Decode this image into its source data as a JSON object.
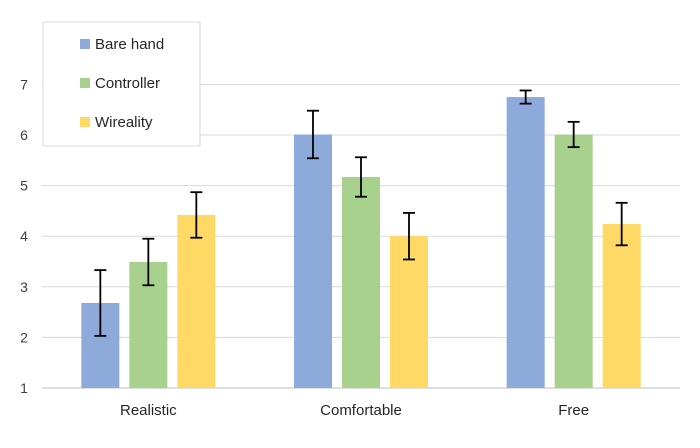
{
  "chart_data": {
    "type": "bar",
    "title": "",
    "xlabel": "",
    "ylabel": "",
    "ylim": [
      1,
      7
    ],
    "ytick_step": 1,
    "grid": true,
    "legend_position": "top-left",
    "categories": [
      "Realistic",
      "Comfortable",
      "Free"
    ],
    "series": [
      {
        "name": "Bare hand",
        "color": "#8eaadb",
        "values": [
          2.68,
          6.01,
          6.75
        ],
        "errors": [
          0.65,
          0.47,
          0.13
        ]
      },
      {
        "name": "Controller",
        "color": "#a9d18e",
        "values": [
          3.49,
          5.17,
          6.01
        ],
        "errors": [
          0.46,
          0.39,
          0.25
        ]
      },
      {
        "name": "Wireality",
        "color": "#ffd966",
        "values": [
          4.42,
          4.0,
          4.24
        ],
        "errors": [
          0.45,
          0.46,
          0.42
        ]
      }
    ]
  }
}
